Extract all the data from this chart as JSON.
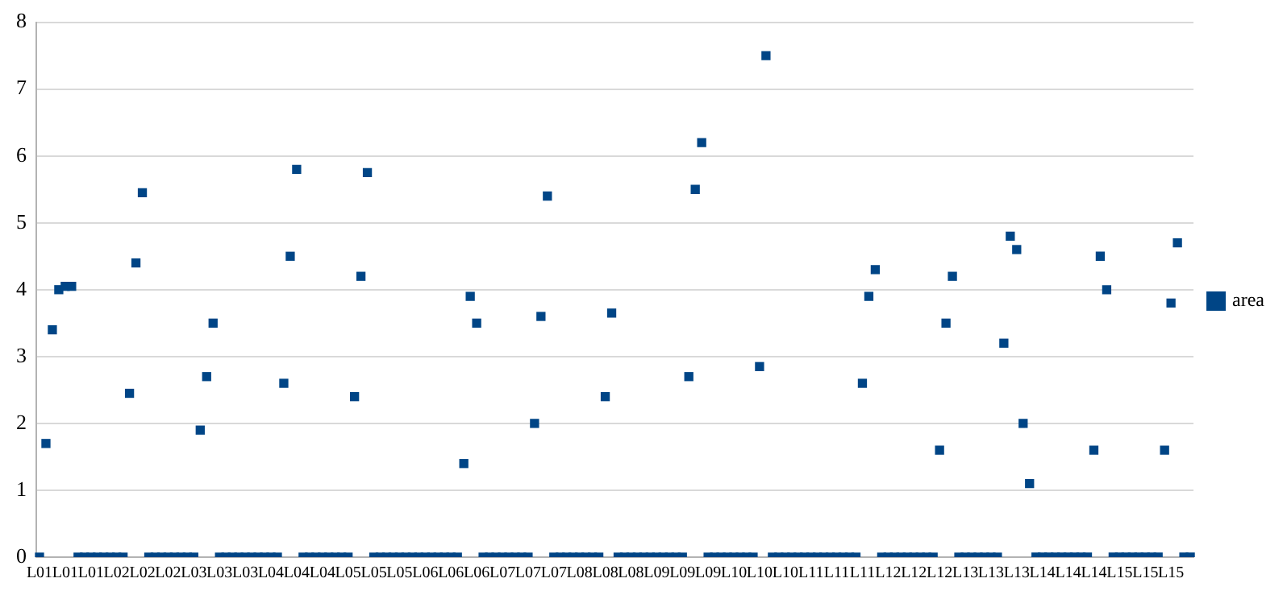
{
  "chart_data": {
    "type": "scatter",
    "categories": [
      "L01",
      null,
      null,
      null,
      "L01",
      null,
      null,
      null,
      "L01",
      null,
      null,
      null,
      "L02",
      null,
      null,
      null,
      "L02",
      null,
      null,
      null,
      "L02",
      null,
      null,
      null,
      "L03",
      null,
      null,
      null,
      "L03",
      null,
      null,
      null,
      "L03",
      null,
      null,
      null,
      "L04",
      null,
      null,
      null,
      "L04",
      null,
      null,
      null,
      "L04",
      null,
      null,
      null,
      "L05",
      null,
      null,
      null,
      "L05",
      null,
      null,
      null,
      "L05",
      null,
      null,
      null,
      "L06",
      null,
      null,
      null,
      "L06",
      null,
      null,
      null,
      "L06",
      null,
      null,
      null,
      "L07",
      null,
      null,
      null,
      "L07",
      null,
      null,
      null,
      "L07",
      null,
      null,
      null,
      "L08",
      null,
      null,
      null,
      "L08",
      null,
      null,
      null,
      "L08",
      null,
      null,
      null,
      "L09",
      null,
      null,
      null,
      "L09",
      null,
      null,
      null,
      "L09",
      null,
      null,
      null,
      "L10",
      null,
      null,
      null,
      "L10",
      null,
      null,
      null,
      "L10",
      null,
      null,
      null,
      "L11",
      null,
      null,
      null,
      "L11",
      null,
      null,
      null,
      "L11",
      null,
      null,
      null,
      "L12",
      null,
      null,
      null,
      "L12",
      null,
      null,
      null,
      "L12",
      null,
      null,
      null,
      "L13",
      null,
      null,
      null,
      "L13",
      null,
      null,
      null,
      "L13",
      null,
      null,
      null,
      "L14",
      null,
      null,
      null,
      "L14",
      null,
      null,
      null,
      "L14",
      null,
      null,
      null,
      "L15",
      null,
      null,
      null,
      "L15",
      null,
      null,
      null,
      "L15",
      null,
      null,
      null
    ],
    "series": [
      {
        "name": "area",
        "color": "#004586",
        "values": [
          0,
          1.7,
          3.4,
          4.0,
          4.05,
          4.05,
          0,
          0,
          0,
          0,
          0,
          0,
          0,
          0,
          2.45,
          4.4,
          5.45,
          0,
          0,
          0,
          0,
          0,
          0,
          0,
          0,
          1.9,
          2.7,
          3.5,
          0,
          0,
          0,
          0,
          0,
          0,
          0,
          0,
          0,
          0,
          2.6,
          4.5,
          5.8,
          0,
          0,
          0,
          0,
          0,
          0,
          0,
          0,
          2.4,
          4.2,
          5.75,
          0,
          0,
          0,
          0,
          0,
          0,
          0,
          0,
          0,
          0,
          0,
          0,
          0,
          0,
          1.4,
          3.9,
          3.5,
          0,
          0,
          0,
          0,
          0,
          0,
          0,
          0,
          2.0,
          3.6,
          5.4,
          0,
          0,
          0,
          0,
          0,
          0,
          0,
          0,
          2.4,
          3.65,
          0,
          0,
          0,
          0,
          0,
          0,
          0,
          0,
          0,
          0,
          0,
          2.7,
          5.5,
          6.2,
          0,
          0,
          0,
          0,
          0,
          0,
          0,
          0,
          2.85,
          7.5,
          0,
          0,
          0,
          0,
          0,
          0,
          0,
          0,
          0,
          0,
          0,
          0,
          0,
          0,
          2.6,
          3.9,
          4.3,
          0,
          0,
          0,
          0,
          0,
          0,
          0,
          0,
          0,
          1.6,
          3.5,
          4.2,
          0,
          0,
          0,
          0,
          0,
          0,
          0,
          3.2,
          4.8,
          4.6,
          2.0,
          1.1,
          0,
          0,
          0,
          0,
          0,
          0,
          0,
          0,
          0,
          1.6,
          4.5,
          4.0,
          0,
          0,
          0,
          0,
          0,
          0,
          0,
          0,
          1.6,
          3.8,
          4.7,
          0,
          0
        ]
      }
    ],
    "ylim": [
      0,
      8
    ],
    "yticks": [
      0,
      1,
      2,
      3,
      4,
      5,
      6,
      7,
      8
    ],
    "grid": "y",
    "legend": "right",
    "marker": "square"
  }
}
